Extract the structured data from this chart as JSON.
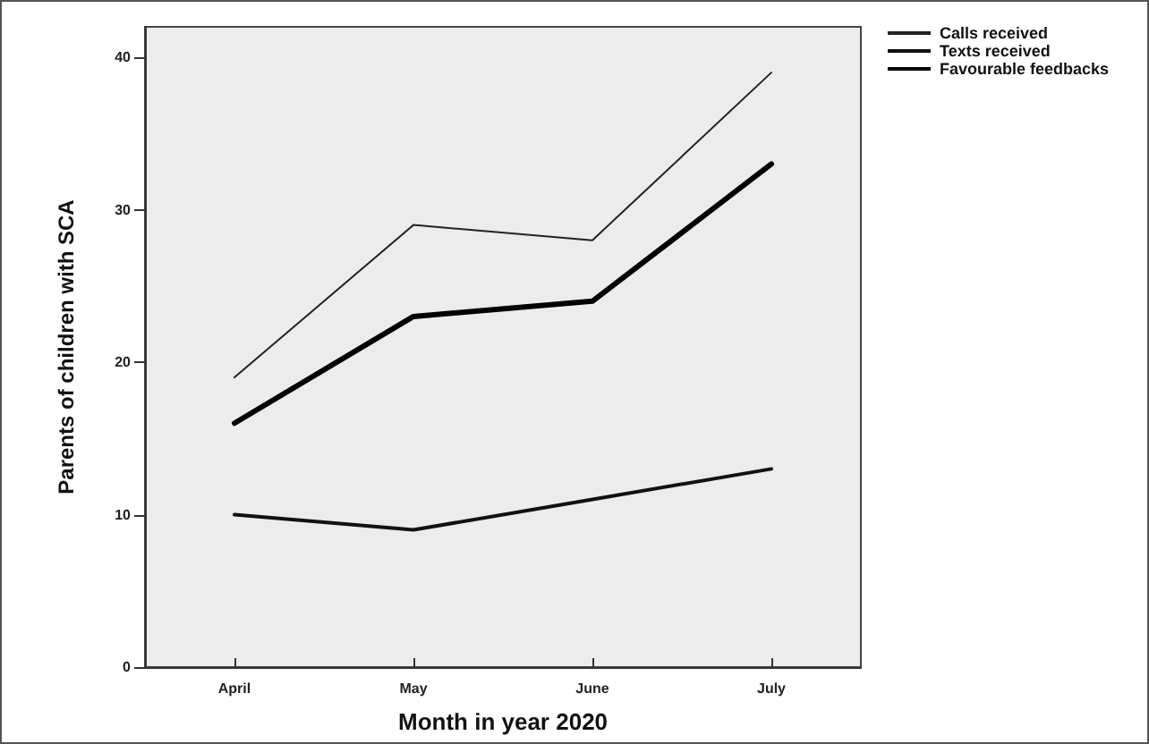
{
  "chart_data": {
    "type": "line",
    "xlabel": "Month in year 2020",
    "ylabel": "Parents of children with SCA",
    "categories": [
      "April",
      "May",
      "June",
      "July"
    ],
    "series": [
      {
        "name": "Calls received",
        "color": "#222222",
        "values": [
          19,
          29,
          28,
          39
        ]
      },
      {
        "name": "Texts received",
        "color": "#111111",
        "values": [
          10,
          9,
          11,
          13
        ]
      },
      {
        "name": "Favourable feedbacks",
        "color": "#000000",
        "values": [
          16,
          23,
          24,
          33
        ]
      }
    ],
    "ylim": [
      0,
      42
    ],
    "yticks": [
      0,
      10,
      20,
      30,
      40
    ],
    "grid": false,
    "legend": "top right",
    "marker": "none",
    "line_style": "solid"
  }
}
